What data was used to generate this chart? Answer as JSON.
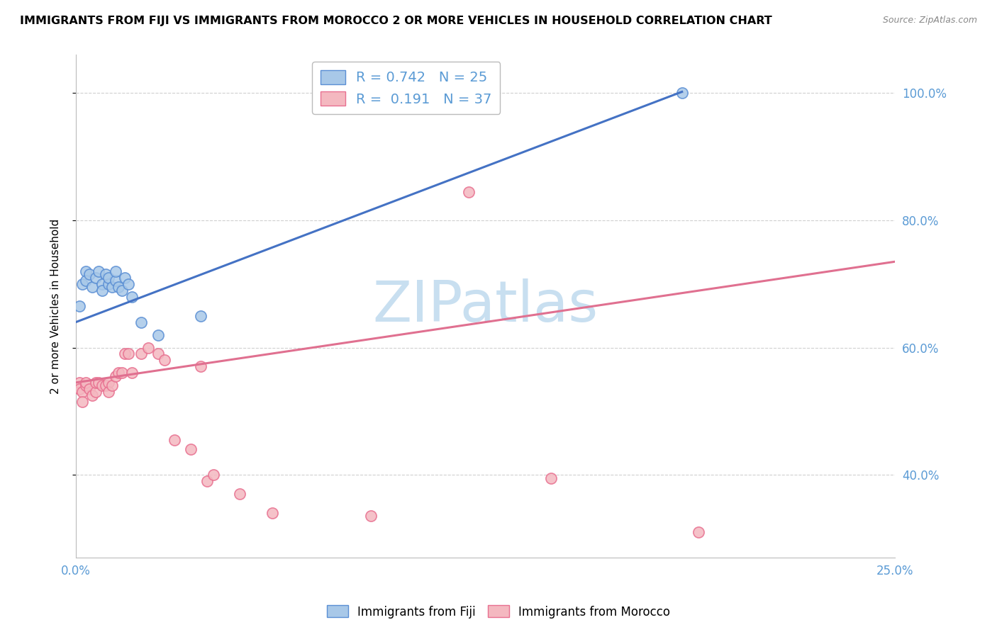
{
  "title": "IMMIGRANTS FROM FIJI VS IMMIGRANTS FROM MOROCCO 2 OR MORE VEHICLES IN HOUSEHOLD CORRELATION CHART",
  "source": "Source: ZipAtlas.com",
  "ylabel": "2 or more Vehicles in Household",
  "fiji_R": "0.742",
  "fiji_N": "25",
  "morocco_R": "0.191",
  "morocco_N": "37",
  "fiji_color": "#a8c8e8",
  "morocco_color": "#f4b8c0",
  "fiji_edge_color": "#5b8fd4",
  "morocco_edge_color": "#e87090",
  "fiji_line_color": "#4472c4",
  "morocco_line_color": "#e07090",
  "watermark_color": "#c8dff0",
  "legend_fiji": "Immigrants from Fiji",
  "legend_morocco": "Immigrants from Morocco",
  "xlim": [
    0.0,
    0.25
  ],
  "ylim": [
    0.27,
    1.06
  ],
  "ytick_vals": [
    0.4,
    0.6,
    0.8,
    1.0
  ],
  "ytick_labels": [
    "40.0%",
    "60.0%",
    "80.0%",
    "100.0%"
  ],
  "xtick_vals": [
    0.0,
    0.05,
    0.1,
    0.15,
    0.2,
    0.25
  ],
  "xtick_labels": [
    "0.0%",
    "",
    "",
    "",
    "",
    "25.0%"
  ],
  "fiji_scatter_x": [
    0.001,
    0.002,
    0.003,
    0.003,
    0.004,
    0.005,
    0.006,
    0.007,
    0.008,
    0.008,
    0.009,
    0.01,
    0.01,
    0.011,
    0.012,
    0.012,
    0.013,
    0.014,
    0.015,
    0.016,
    0.017,
    0.02,
    0.025,
    0.038,
    0.185
  ],
  "fiji_scatter_y": [
    0.665,
    0.7,
    0.72,
    0.705,
    0.715,
    0.695,
    0.71,
    0.72,
    0.7,
    0.69,
    0.715,
    0.7,
    0.71,
    0.695,
    0.705,
    0.72,
    0.695,
    0.69,
    0.71,
    0.7,
    0.68,
    0.64,
    0.62,
    0.65,
    1.0
  ],
  "morocco_scatter_x": [
    0.001,
    0.001,
    0.002,
    0.002,
    0.003,
    0.003,
    0.004,
    0.005,
    0.006,
    0.006,
    0.007,
    0.008,
    0.009,
    0.01,
    0.01,
    0.011,
    0.012,
    0.013,
    0.014,
    0.015,
    0.016,
    0.017,
    0.02,
    0.022,
    0.025,
    0.027,
    0.03,
    0.035,
    0.038,
    0.04,
    0.042,
    0.05,
    0.06,
    0.09,
    0.12,
    0.145,
    0.19
  ],
  "morocco_scatter_y": [
    0.545,
    0.535,
    0.53,
    0.515,
    0.54,
    0.545,
    0.535,
    0.525,
    0.53,
    0.545,
    0.545,
    0.54,
    0.54,
    0.545,
    0.53,
    0.54,
    0.555,
    0.56,
    0.56,
    0.59,
    0.59,
    0.56,
    0.59,
    0.6,
    0.59,
    0.58,
    0.455,
    0.44,
    0.57,
    0.39,
    0.4,
    0.37,
    0.34,
    0.335,
    0.845,
    0.395,
    0.31
  ],
  "fiji_trend_x": [
    0.0,
    0.185
  ],
  "fiji_trend_y": [
    0.64,
    1.002
  ],
  "morocco_trend_x": [
    0.0,
    0.25
  ],
  "morocco_trend_y": [
    0.545,
    0.735
  ],
  "grid_color": "#d0d0d0",
  "axis_label_color": "#5b9bd5",
  "title_fontsize": 11.5,
  "axis_tick_fontsize": 12,
  "legend_fontsize": 14,
  "marker_size": 120
}
